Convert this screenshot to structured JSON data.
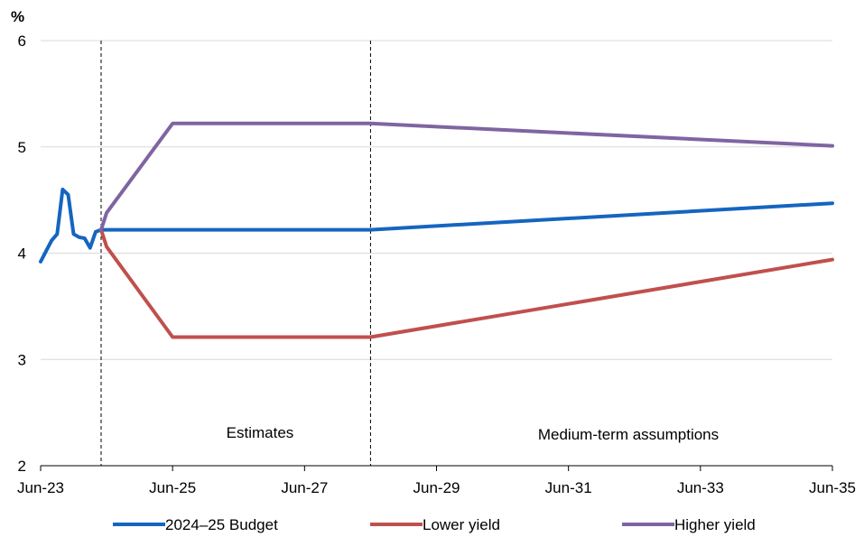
{
  "chart_data": {
    "type": "line",
    "y_unit_label": "%",
    "ylim": [
      2,
      6
    ],
    "y_ticks": [
      2,
      3,
      4,
      5,
      6
    ],
    "x_range_months": [
      "2023-06",
      "2035-06"
    ],
    "x_ticks": [
      "Jun-23",
      "Jun-25",
      "Jun-27",
      "Jun-29",
      "Jun-31",
      "Jun-33",
      "Jun-35"
    ],
    "grid": "horizontal",
    "vertical_markers": [
      "2024-05",
      "2028-06"
    ],
    "region_labels": [
      "Estimates",
      "Medium-term assumptions"
    ],
    "legend_position": "bottom",
    "series": [
      {
        "name": "2024–25 Budget",
        "color": "#1565C0",
        "points": [
          [
            "2023-06",
            3.92
          ],
          [
            "2023-07",
            4.02
          ],
          [
            "2023-08",
            4.12
          ],
          [
            "2023-09",
            4.18
          ],
          [
            "2023-10",
            4.6
          ],
          [
            "2023-11",
            4.55
          ],
          [
            "2023-12",
            4.18
          ],
          [
            "2024-01",
            4.15
          ],
          [
            "2024-02",
            4.14
          ],
          [
            "2024-03",
            4.05
          ],
          [
            "2024-04",
            4.2
          ],
          [
            "2024-05",
            4.22
          ],
          [
            "2025-06",
            4.22
          ],
          [
            "2028-06",
            4.22
          ],
          [
            "2035-06",
            4.47
          ]
        ]
      },
      {
        "name": "Lower yield",
        "color": "#C0504D",
        "points": [
          [
            "2024-05",
            4.22
          ],
          [
            "2024-06",
            4.06
          ],
          [
            "2025-06",
            3.21
          ],
          [
            "2028-06",
            3.21
          ],
          [
            "2035-06",
            3.94
          ]
        ]
      },
      {
        "name": "Higher yield",
        "color": "#8064A2",
        "points": [
          [
            "2024-05",
            4.22
          ],
          [
            "2024-06",
            4.38
          ],
          [
            "2025-06",
            5.22
          ],
          [
            "2028-06",
            5.22
          ],
          [
            "2035-06",
            5.01
          ]
        ]
      }
    ]
  }
}
